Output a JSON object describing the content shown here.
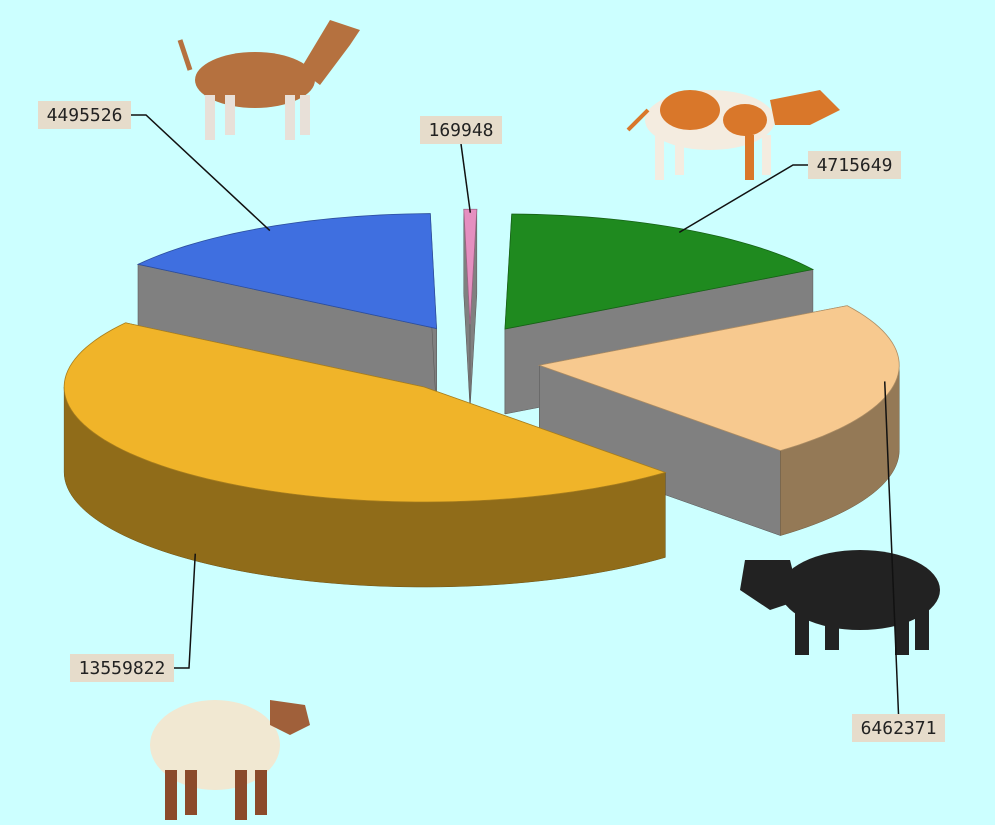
{
  "chart_data": {
    "type": "pie",
    "values": [
      169948,
      4715649,
      6462371,
      13559822,
      4495526
    ],
    "colors": [
      "#e58fc0",
      "#1f8a1f",
      "#f7c98f",
      "#f0b429",
      "#3f6fe0"
    ]
  }
}
